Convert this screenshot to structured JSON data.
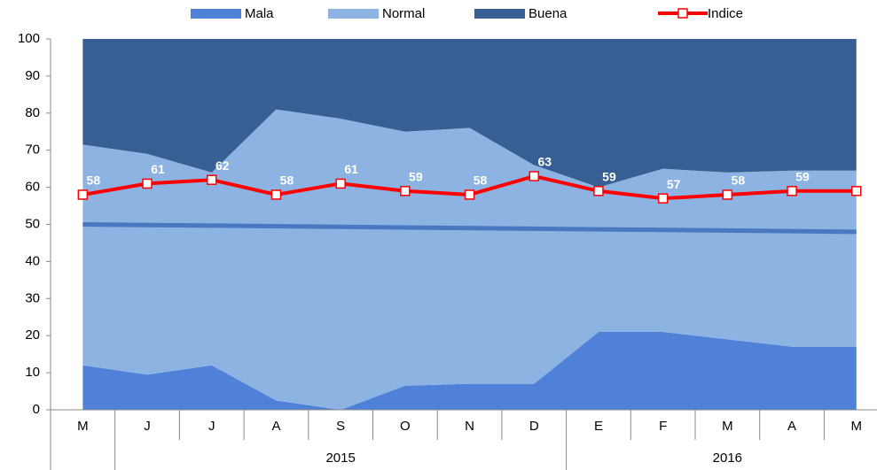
{
  "chart_data": {
    "type": "area",
    "stacked": true,
    "categories": [
      "M",
      "J",
      "J",
      "A",
      "S",
      "O",
      "N",
      "D",
      "E",
      "F",
      "M",
      "A",
      "M"
    ],
    "groups": [
      {
        "label": "2015",
        "start": 1,
        "end": 7
      },
      {
        "label": "2016",
        "start": 8,
        "end": 12
      }
    ],
    "series": [
      {
        "name": "Mala",
        "color": "#4f81d9",
        "values": [
          12,
          9.5,
          12,
          2.5,
          0,
          6.5,
          7,
          7,
          21,
          21,
          19,
          17,
          17
        ]
      },
      {
        "name": "Normal",
        "color": "#8db3e2",
        "values": [
          59.5,
          59.5,
          52,
          78.5,
          78.5,
          68.5,
          69,
          59,
          39,
          44,
          45,
          47.5,
          47.5
        ]
      },
      {
        "name": "Buena",
        "color": "#375f93",
        "values": [
          28.5,
          31,
          36,
          19,
          21.5,
          25,
          24,
          34,
          40,
          35,
          36,
          35.5,
          35.5
        ]
      },
      {
        "name": "Indice",
        "type": "line",
        "color": "#ff0000",
        "values": [
          58,
          61,
          62,
          58,
          61,
          59,
          58,
          63,
          59,
          57,
          58,
          59,
          59
        ]
      }
    ],
    "trendline": {
      "start": 50,
      "end": 48,
      "color": "#4a78c0"
    },
    "ylim": [
      0,
      100
    ],
    "yticks": [
      0,
      10,
      20,
      30,
      40,
      50,
      60,
      70,
      80,
      90,
      100
    ],
    "legend": "top"
  }
}
